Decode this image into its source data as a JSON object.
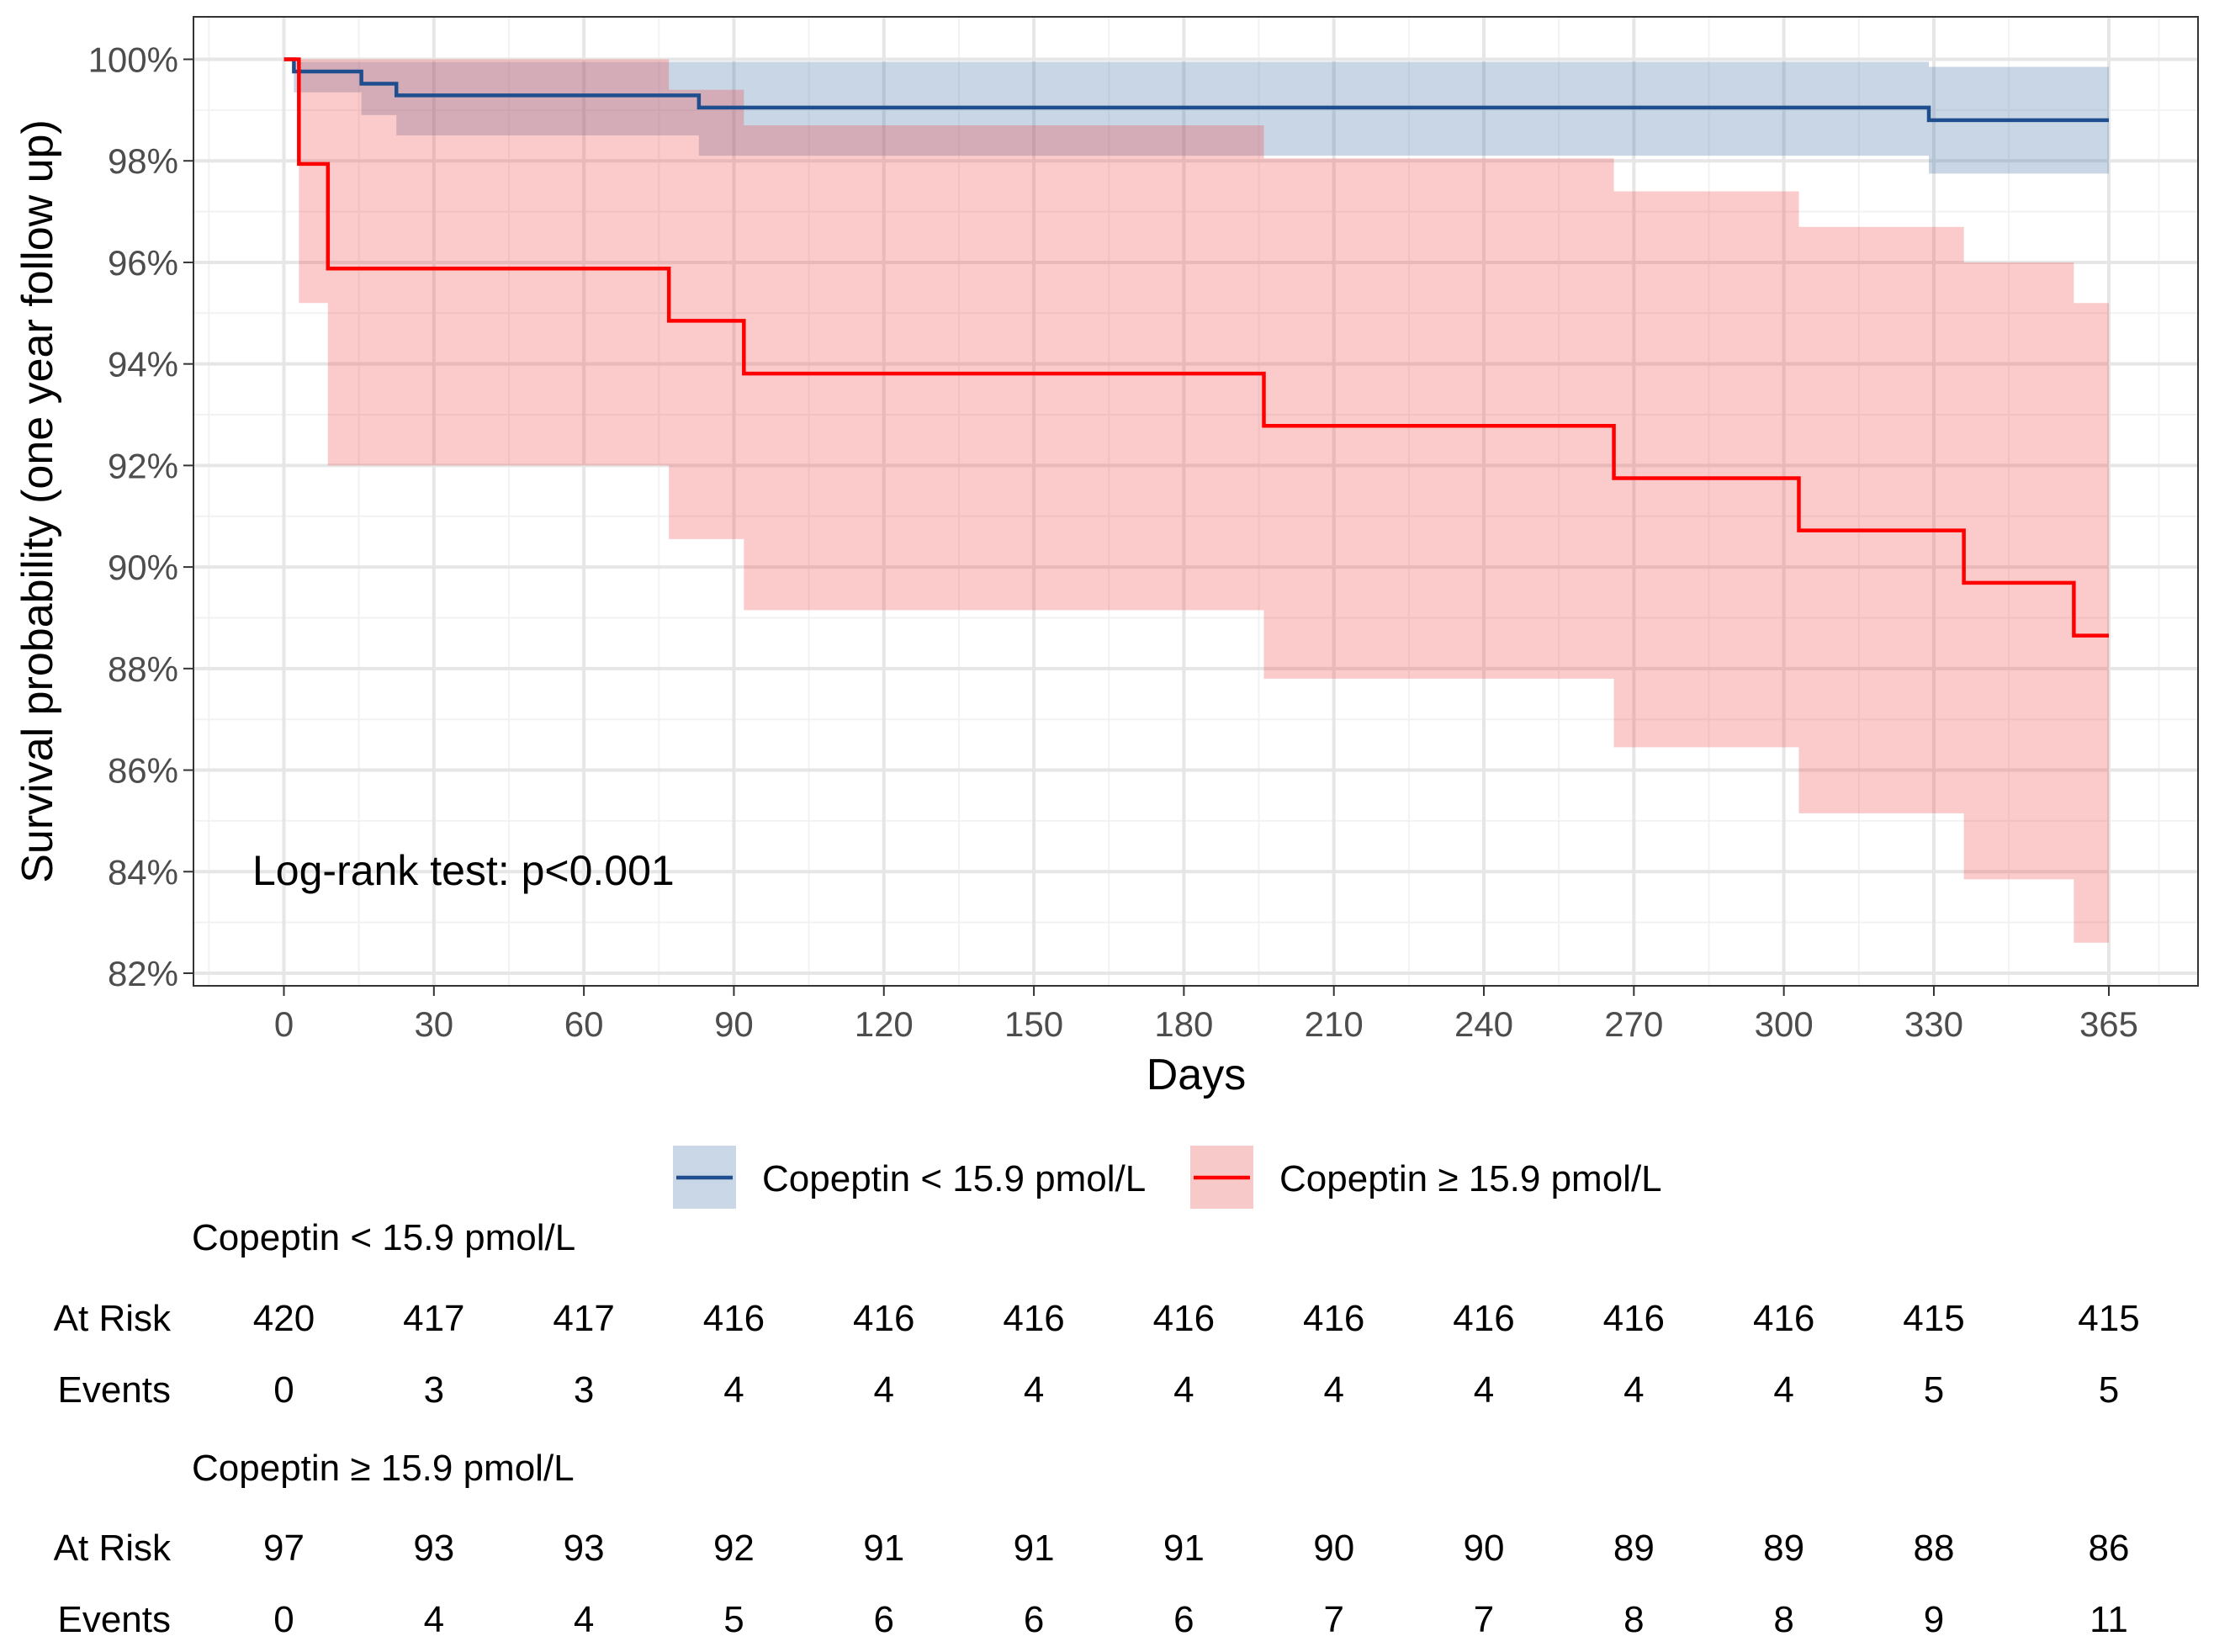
{
  "chart_data": {
    "type": "line",
    "subtype": "kaplan-meier",
    "xlabel": "Days",
    "ylabel": "Survival probability (one year follow up)",
    "xlim": [
      0,
      365
    ],
    "ylim": [
      82,
      100
    ],
    "x_ticks": [
      0,
      30,
      60,
      90,
      120,
      150,
      180,
      210,
      240,
      270,
      300,
      330,
      365
    ],
    "y_ticks": [
      100,
      98,
      96,
      94,
      92,
      90,
      88,
      86,
      84,
      82
    ],
    "y_tick_labels": [
      "100%",
      "98%",
      "96%",
      "94%",
      "92%",
      "90%",
      "88%",
      "86%",
      "84%",
      "82%"
    ],
    "grid": true,
    "annotation": "Log-rank test: p<0.001",
    "legend_position": "bottom",
    "series": [
      {
        "name": "Copeptin < 15.9 pmol/L",
        "line_color": "#1f4e8f",
        "fill_color": "#c9d7e6",
        "times": [
          0,
          2,
          15.5,
          22.5,
          83,
          329,
          365
        ],
        "survival": [
          100,
          99.76,
          99.52,
          99.29,
          99.05,
          98.8,
          98.8
        ],
        "ci_upper": [
          100,
          99.95,
          99.95,
          99.95,
          99.95,
          99.85,
          99.85
        ],
        "ci_lower": [
          100,
          99.35,
          98.9,
          98.5,
          98.1,
          97.75,
          97.75
        ]
      },
      {
        "name": "Copeptin ≥ 15.9 pmol/L",
        "line_color": "#ff0000",
        "fill_color": "#f8c9c9",
        "times": [
          0,
          3,
          8.8,
          77,
          92,
          196,
          266,
          303,
          336,
          358,
          365
        ],
        "survival": [
          100,
          97.94,
          95.88,
          94.85,
          93.81,
          92.78,
          91.75,
          90.72,
          89.69,
          88.65,
          88.65
        ],
        "ci_upper": [
          100,
          100,
          100,
          99.4,
          98.7,
          98.05,
          97.4,
          96.7,
          96.0,
          95.2,
          95.2
        ],
        "ci_lower": [
          100,
          95.2,
          92.0,
          90.55,
          89.15,
          87.8,
          86.45,
          85.15,
          83.85,
          82.6,
          82.6
        ]
      }
    ],
    "risk_table": {
      "row_labels": {
        "at_risk": "At Risk",
        "events": "Events"
      },
      "groups": [
        {
          "title": "Copeptin < 15.9 pmol/L",
          "at_risk": [
            420,
            417,
            417,
            416,
            416,
            416,
            416,
            416,
            416,
            416,
            416,
            415,
            415
          ],
          "events": [
            0,
            3,
            3,
            4,
            4,
            4,
            4,
            4,
            4,
            4,
            4,
            5,
            5
          ]
        },
        {
          "title": "Copeptin ≥ 15.9 pmol/L",
          "at_risk": [
            97,
            93,
            93,
            92,
            91,
            91,
            91,
            90,
            90,
            89,
            89,
            88,
            86
          ],
          "events": [
            0,
            4,
            4,
            5,
            6,
            6,
            6,
            7,
            7,
            8,
            8,
            9,
            11
          ]
        }
      ]
    }
  }
}
